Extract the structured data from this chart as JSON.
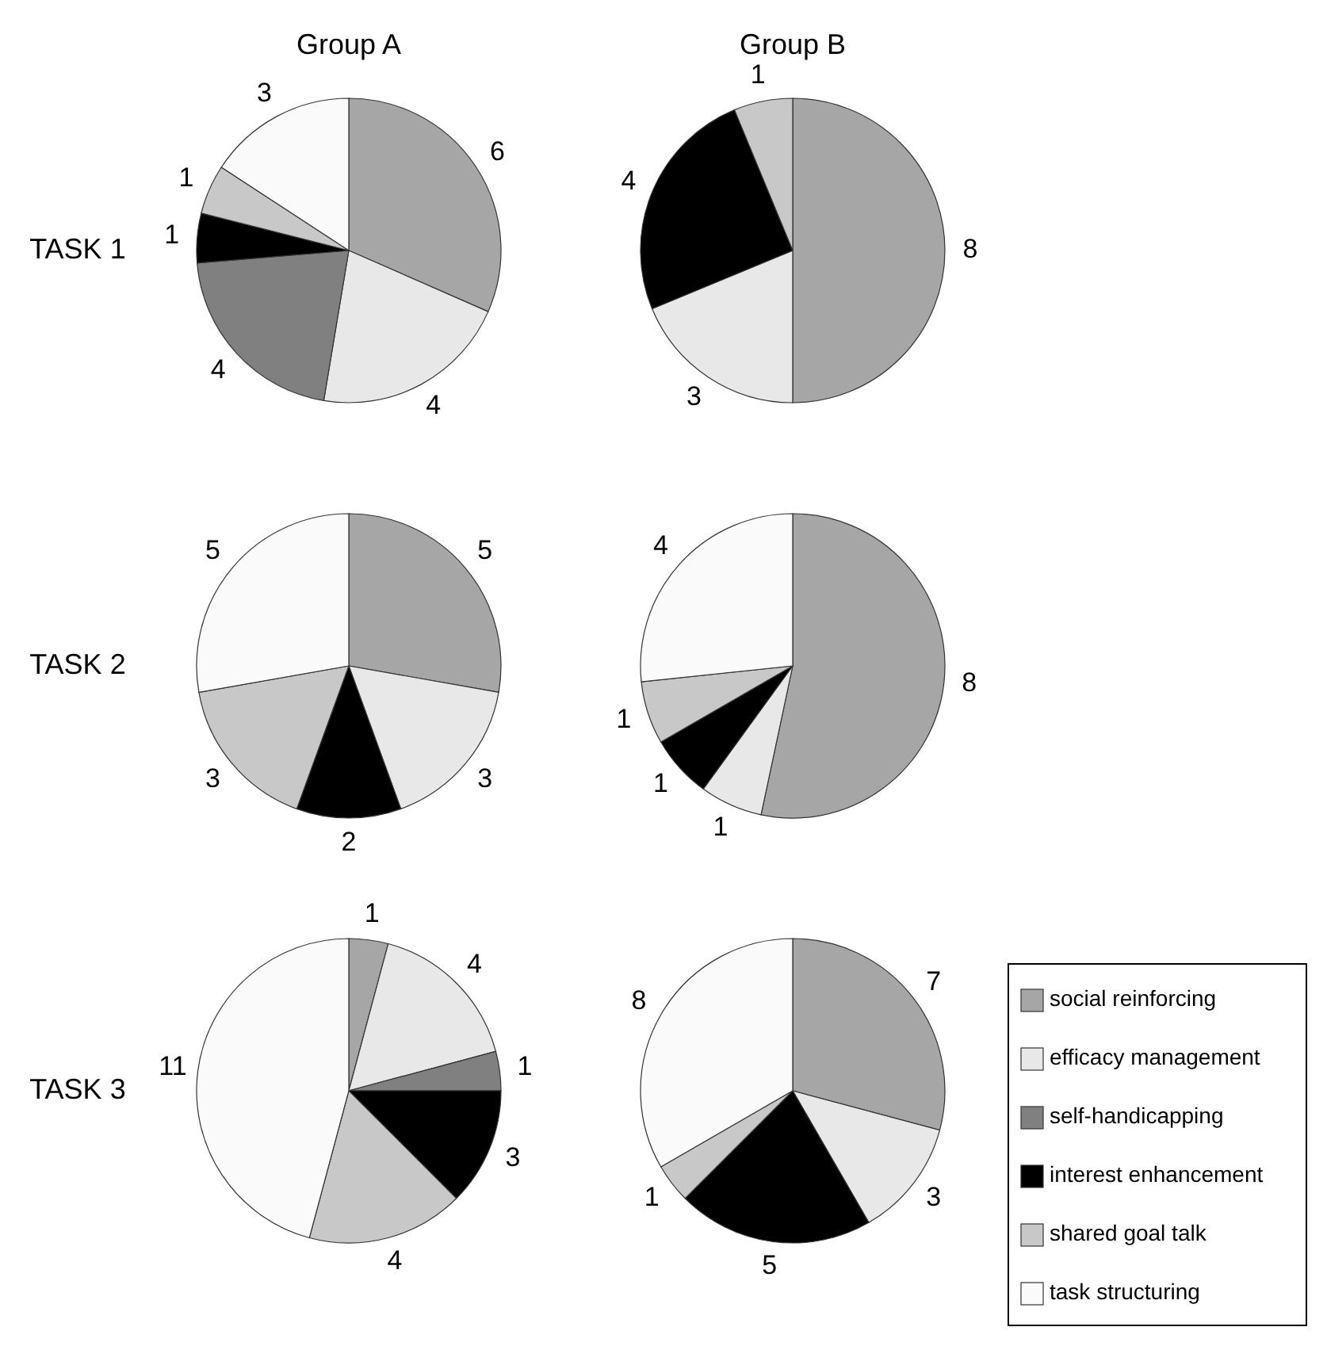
{
  "chart_data": [
    {
      "type": "pie",
      "title": "Group A",
      "ylabel": "TASK 1",
      "categories": [
        null,
        null,
        null,
        null,
        null,
        null
      ],
      "values": [
        6,
        4,
        4,
        1,
        1,
        3
      ],
      "colors": [
        "#a6a6a6",
        "#e8e8e8",
        "#808080",
        "#000000",
        "#c8c8c8",
        "#fafafa"
      ],
      "data_labels": true
    },
    {
      "type": "pie",
      "title": "Group B",
      "categories": [
        null,
        null,
        null,
        null
      ],
      "values": [
        8,
        3,
        4,
        1
      ],
      "colors": [
        "#a6a6a6",
        "#e8e8e8",
        "#000000",
        "#c8c8c8"
      ],
      "data_labels": true
    },
    {
      "type": "pie",
      "ylabel": "TASK 2",
      "categories": [
        null,
        null,
        null,
        null,
        null
      ],
      "values": [
        5,
        3,
        2,
        3,
        5
      ],
      "colors": [
        "#a6a6a6",
        "#e8e8e8",
        "#000000",
        "#c8c8c8",
        "#fafafa"
      ],
      "data_labels": true
    },
    {
      "type": "pie",
      "categories": [
        null,
        null,
        null,
        null,
        null
      ],
      "values": [
        8,
        1,
        1,
        1,
        4
      ],
      "colors": [
        "#a6a6a6",
        "#e8e8e8",
        "#000000",
        "#c8c8c8",
        "#fafafa"
      ],
      "data_labels": true
    },
    {
      "type": "pie",
      "ylabel": "TASK 3",
      "categories": [
        null,
        null,
        null,
        null,
        null,
        null
      ],
      "values": [
        1,
        4,
        1,
        3,
        4,
        11
      ],
      "colors": [
        "#a6a6a6",
        "#e8e8e8",
        "#808080",
        "#000000",
        "#c8c8c8",
        "#fafafa"
      ],
      "data_labels": true
    },
    {
      "type": "pie",
      "categories": [
        "social reinforcing",
        "efficacy management",
        "self-handicapping",
        "interest enhancement",
        "shared goal talk",
        "task structuring"
      ],
      "values": [
        7,
        3,
        0,
        5,
        1,
        8
      ],
      "colors": [
        "#a6a6a6",
        "#e8e8e8",
        "#808080",
        "#000000",
        "#c8c8c8",
        "#fafafa"
      ],
      "data_labels": true,
      "legend": "right"
    }
  ]
}
